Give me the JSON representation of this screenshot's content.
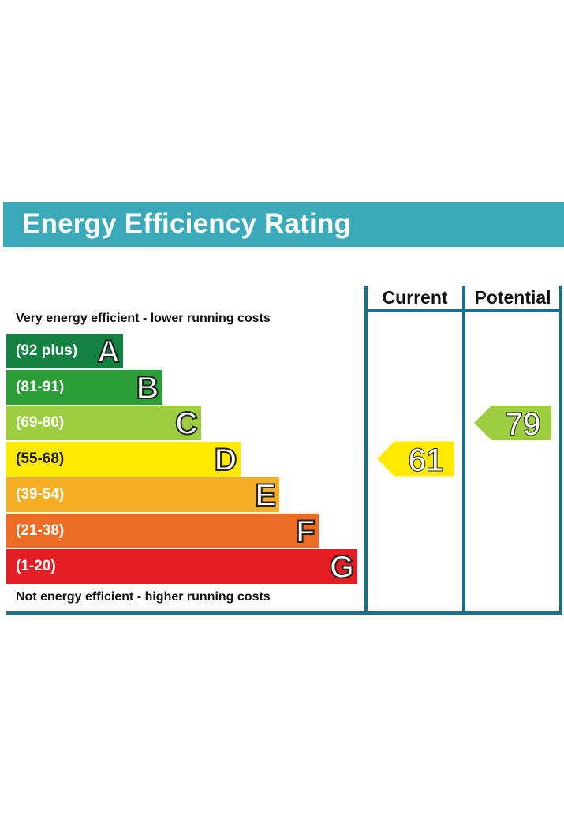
{
  "header": {
    "title": "Energy Efficiency Rating",
    "background": "#3aa9ba"
  },
  "columns": {
    "current_label": "Current",
    "potential_label": "Potential",
    "frame_color": "#1d6e8c"
  },
  "notes": {
    "top": "Very energy efficient - lower running costs",
    "bottom": "Not energy efficient - higher running costs"
  },
  "chart_data": {
    "type": "bar",
    "bands": [
      {
        "letter": "A",
        "range": "(92 plus)",
        "min": 92,
        "max": 100,
        "color": "#13813f"
      },
      {
        "letter": "B",
        "range": "(81-91)",
        "min": 81,
        "max": 91,
        "color": "#2a9e37"
      },
      {
        "letter": "C",
        "range": "(69-80)",
        "min": 69,
        "max": 80,
        "color": "#9dcd41"
      },
      {
        "letter": "D",
        "range": "(55-68)",
        "min": 55,
        "max": 68,
        "color": "#ffe900"
      },
      {
        "letter": "E",
        "range": "(39-54)",
        "min": 39,
        "max": 54,
        "color": "#f5ad25"
      },
      {
        "letter": "F",
        "range": "(21-38)",
        "min": 21,
        "max": 38,
        "color": "#ec6b25"
      },
      {
        "letter": "G",
        "range": "(1-20)",
        "min": 1,
        "max": 20,
        "color": "#e31d23"
      }
    ],
    "current": {
      "value": 61,
      "band": "D",
      "color": "#ffe900"
    },
    "potential": {
      "value": 79,
      "band": "C",
      "color": "#9dcd41"
    }
  }
}
